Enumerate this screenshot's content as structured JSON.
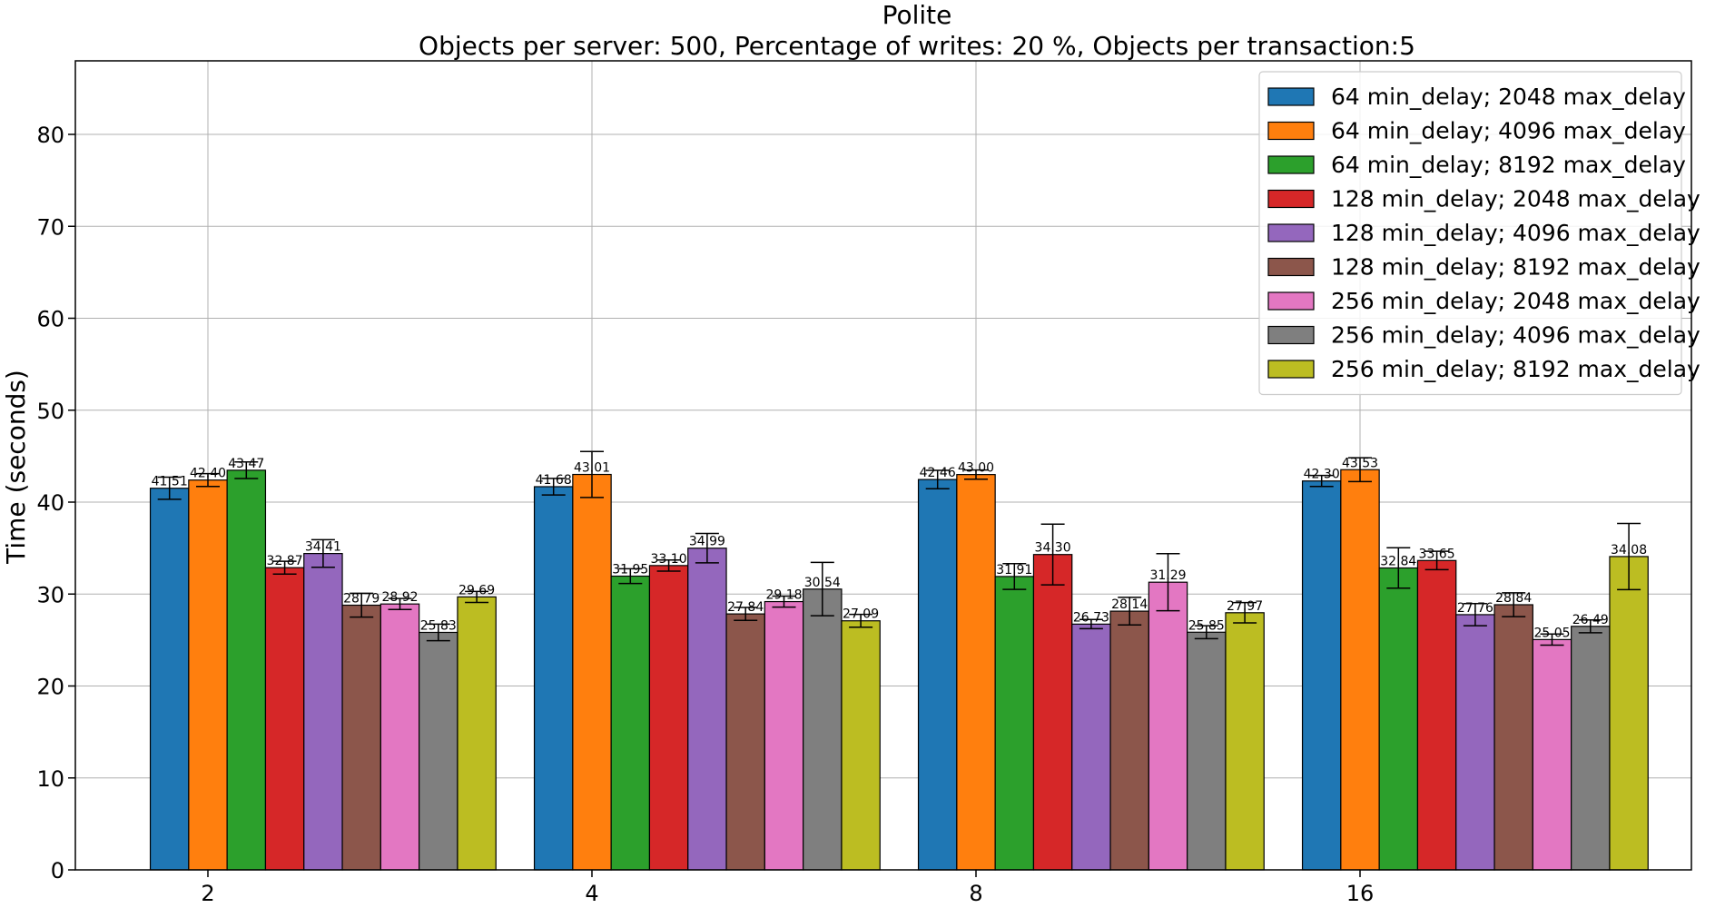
{
  "chart_data": {
    "type": "bar",
    "title": "Polite",
    "subtitle": "Objects per server: 500, Percentage of writes: 20 %, Objects per transaction:5",
    "xlabel": "",
    "ylabel": "Time (seconds)",
    "ylim": [
      0,
      88
    ],
    "yticks": [
      0,
      10,
      20,
      30,
      40,
      50,
      60,
      70,
      80
    ],
    "grid": true,
    "legend_position": "top-right",
    "categories": [
      "2",
      "4",
      "8",
      "16"
    ],
    "series": [
      {
        "name": "64 min_delay; 2048 max_delay",
        "color": "#1f77b4",
        "values": [
          41.51,
          41.68,
          42.46,
          42.3
        ],
        "labels": [
          "41.51",
          "41.68",
          "42.46",
          "42.30"
        ],
        "errors": [
          1.2,
          0.9,
          1.0,
          0.6
        ]
      },
      {
        "name": "64 min_delay; 4096 max_delay",
        "color": "#ff7f0e",
        "values": [
          42.4,
          43.01,
          43.0,
          43.53
        ],
        "labels": [
          "42.40",
          "43.01",
          "43.00",
          "43.53"
        ],
        "errors": [
          0.7,
          2.5,
          0.5,
          1.3
        ]
      },
      {
        "name": "64 min_delay; 8192 max_delay",
        "color": "#2ca02c",
        "values": [
          43.47,
          31.95,
          31.91,
          32.84
        ],
        "labels": [
          "43.47",
          "31.95",
          "31.91",
          "32.84"
        ],
        "errors": [
          0.9,
          0.8,
          1.4,
          2.2
        ]
      },
      {
        "name": "128 min_delay; 2048 max_delay",
        "color": "#d62728",
        "values": [
          32.87,
          33.1,
          34.3,
          33.65
        ],
        "labels": [
          "32.87",
          "33.10",
          "34.30",
          "33.65"
        ],
        "errors": [
          0.7,
          0.6,
          3.3,
          1.0
        ]
      },
      {
        "name": "128 min_delay; 4096 max_delay",
        "color": "#9467bd",
        "values": [
          34.41,
          34.99,
          26.73,
          27.76
        ],
        "labels": [
          "34.41",
          "34.99",
          "26.73",
          "27.76"
        ],
        "errors": [
          1.5,
          1.6,
          0.5,
          1.2
        ]
      },
      {
        "name": "128 min_delay; 8192 max_delay",
        "color": "#8c564b",
        "values": [
          28.79,
          27.84,
          28.14,
          28.84
        ],
        "labels": [
          "28.79",
          "27.84",
          "28.14",
          "28.84"
        ],
        "errors": [
          1.3,
          0.7,
          1.5,
          1.3
        ]
      },
      {
        "name": "256 min_delay; 2048 max_delay",
        "color": "#e377c2",
        "values": [
          28.92,
          29.18,
          31.29,
          25.05
        ],
        "labels": [
          "28.92",
          "29.18",
          "31.29",
          "25.05"
        ],
        "errors": [
          0.6,
          0.6,
          3.1,
          0.6
        ]
      },
      {
        "name": "256 min_delay; 4096 max_delay",
        "color": "#7f7f7f",
        "values": [
          25.83,
          30.54,
          25.85,
          26.49
        ],
        "labels": [
          "25.83",
          "30.54",
          "25.85",
          "26.49"
        ],
        "errors": [
          0.9,
          2.9,
          0.7,
          0.7
        ]
      },
      {
        "name": "256 min_delay; 8192 max_delay",
        "color": "#bcbd22",
        "values": [
          29.69,
          27.09,
          27.97,
          34.08
        ],
        "labels": [
          "29.69",
          "27.09",
          "27.97",
          "34.08"
        ],
        "errors": [
          0.6,
          0.7,
          1.1,
          3.6
        ]
      }
    ]
  }
}
